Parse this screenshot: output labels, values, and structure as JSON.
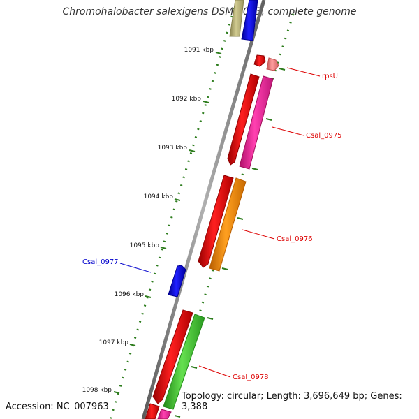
{
  "title": "Chromohalobacter salexigens DSM 3043, complete genome",
  "footer": {
    "accession": "Accession: NC_007963",
    "topology": "Topology: circular; Length: 3,696,649 bp; Genes: 3,388"
  },
  "colors": {
    "backbone": "#888888",
    "tick": "#2e7d1e",
    "red_gene": "#ee0000",
    "blue_gene": "#0000ee",
    "pink_gene": "#ff2aa0",
    "orange_gene": "#ff8c00",
    "green_gene": "#44cc33",
    "khaki_gene": "#b8b070",
    "salmon_gene": "#f08080",
    "label_red": "#dd0000",
    "label_blue": "#0000cc"
  },
  "ticks": [
    {
      "label": "1091 kbp"
    },
    {
      "label": "1092 kbp"
    },
    {
      "label": "1093 kbp"
    },
    {
      "label": "1094 kbp"
    },
    {
      "label": "1095 kbp"
    },
    {
      "label": "1096 kbp"
    },
    {
      "label": "1097 kbp"
    },
    {
      "label": "1098 kbp"
    }
  ],
  "labels": {
    "rpsU": "rpsU",
    "csal_0975": "Csal_0975",
    "csal_0976": "Csal_0976",
    "csal_0977": "Csal_0977",
    "csal_0978": "Csal_0978"
  }
}
